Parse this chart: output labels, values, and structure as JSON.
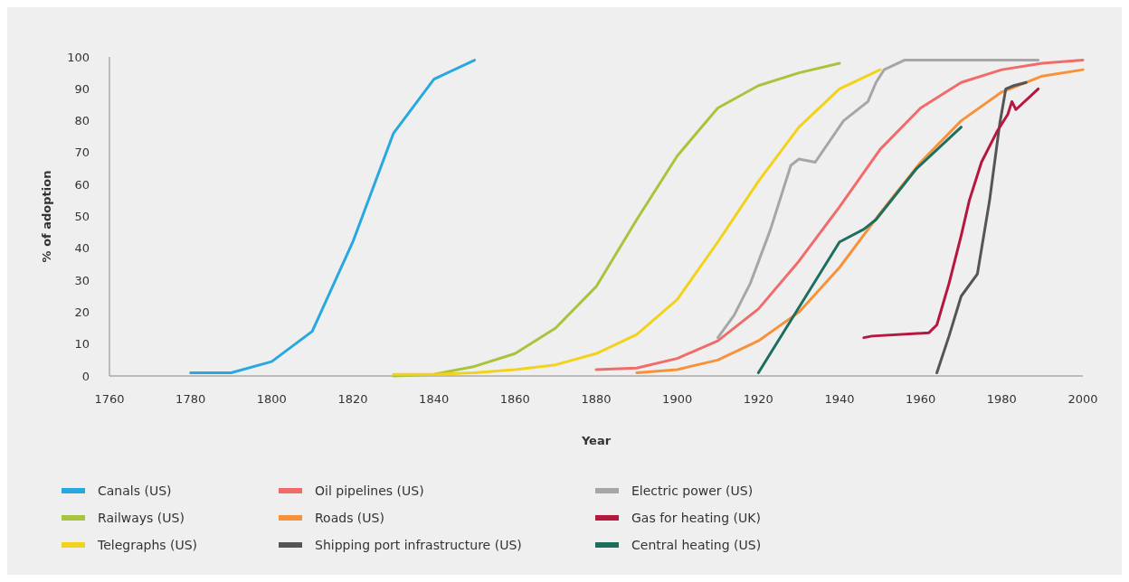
{
  "chart_data": {
    "type": "line",
    "xlabel": "Year",
    "ylabel": "% of adoption",
    "xlim": [
      1760,
      2000
    ],
    "xticks": [
      1760,
      1780,
      1800,
      1820,
      1840,
      1860,
      1880,
      1900,
      1920,
      1940,
      1960,
      1980,
      2000
    ],
    "ylim": [
      0,
      100
    ],
    "yticks": [
      0,
      10,
      20,
      30,
      40,
      50,
      60,
      70,
      80,
      90,
      100
    ],
    "grid": false,
    "legend": "bottom",
    "marker": "none",
    "line_style": "solid",
    "series": [
      {
        "name": "Canals (US)",
        "color": "#29a8e0",
        "x": [
          1780,
          1790,
          1800,
          1810,
          1820,
          1830,
          1840,
          1850
        ],
        "values": [
          1,
          1,
          4.5,
          14,
          42,
          76,
          93,
          99
        ]
      },
      {
        "name": "Railways (US)",
        "color": "#a8c43c",
        "x": [
          1830,
          1840,
          1850,
          1860,
          1870,
          1880,
          1890,
          1900,
          1910,
          1920,
          1930,
          1940
        ],
        "values": [
          0,
          0.5,
          3,
          7,
          15,
          28,
          49,
          69,
          84,
          91,
          95,
          98
        ]
      },
      {
        "name": "Telegraphs (US)",
        "color": "#f2d21b",
        "x": [
          1830,
          1840,
          1850,
          1860,
          1870,
          1880,
          1890,
          1900,
          1910,
          1920,
          1930,
          1940,
          1950
        ],
        "values": [
          0.5,
          0.5,
          1,
          2,
          3.5,
          7,
          13,
          24,
          42,
          61,
          78,
          90,
          96
        ]
      },
      {
        "name": "Oil pipelines (US)",
        "color": "#f26b6b",
        "x": [
          1880,
          1890,
          1900,
          1910,
          1920,
          1930,
          1940,
          1950,
          1960,
          1970,
          1980,
          1990,
          2000
        ],
        "values": [
          2,
          2.5,
          5.5,
          11,
          21,
          36,
          53,
          71,
          84,
          92,
          96,
          98,
          99
        ]
      },
      {
        "name": "Roads (US)",
        "color": "#f7923a",
        "x": [
          1890,
          1900,
          1910,
          1920,
          1930,
          1940,
          1950,
          1960,
          1970,
          1980,
          1990,
          2000
        ],
        "values": [
          1,
          2,
          5,
          11,
          20,
          34,
          51,
          67,
          80,
          89,
          94,
          96
        ]
      },
      {
        "name": "Shipping port infrastructure (US)",
        "color": "#555555",
        "x": [
          1964,
          1967,
          1970,
          1974,
          1977,
          1979.5,
          1981,
          1983,
          1986
        ],
        "values": [
          1,
          12.5,
          25,
          32,
          55,
          79,
          90,
          91,
          92
        ]
      },
      {
        "name": "Electric power (US)",
        "color": "#a6a6a6",
        "x": [
          1910,
          1914,
          1918,
          1923,
          1928,
          1930,
          1934,
          1941,
          1947,
          1949,
          1951,
          1956,
          1989
        ],
        "values": [
          12,
          19,
          29,
          46,
          66,
          68,
          67,
          80,
          86,
          92,
          96,
          99,
          99
        ]
      },
      {
        "name": "Gas for heating (UK)",
        "color": "#b5173f",
        "x": [
          1946,
          1948,
          1962,
          1964,
          1967,
          1970,
          1972,
          1975,
          1979,
          1981.5,
          1982.5,
          1983.5,
          1989
        ],
        "values": [
          12,
          12.5,
          13.5,
          16,
          29,
          44,
          55,
          67,
          77,
          82,
          86,
          83.5,
          90
        ]
      },
      {
        "name": "Central heating (US)",
        "color": "#1e6e5f",
        "x": [
          1920,
          1940,
          1946,
          1949,
          1959,
          1970
        ],
        "values": [
          1,
          42,
          46,
          49,
          65,
          78
        ]
      }
    ]
  }
}
